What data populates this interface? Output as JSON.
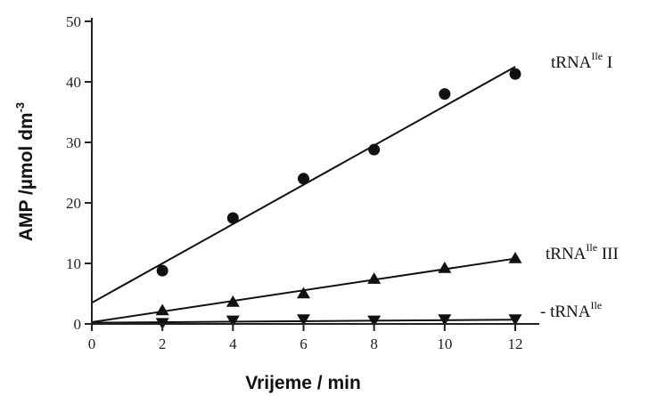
{
  "chart_data": {
    "type": "scatter",
    "xlabel": "Vrijeme / min",
    "ylabel": {
      "main": "AMP /µmol dm",
      "sup": "-3"
    },
    "xlim": [
      0,
      12
    ],
    "ylim": [
      0,
      50
    ],
    "xticks": [
      0,
      2,
      4,
      6,
      8,
      10,
      12
    ],
    "yticks": [
      0,
      10,
      20,
      30,
      40,
      50
    ],
    "grid": false,
    "x": [
      2,
      4,
      6,
      8,
      10,
      12
    ],
    "series": [
      {
        "label": {
          "pre": "tRNA",
          "sup": "Ile",
          "post": " I"
        },
        "marker": "circle",
        "y": [
          8.8,
          17.5,
          24.0,
          28.8,
          38.0,
          41.3
        ],
        "fit": {
          "x0": 0,
          "y0": 3.5,
          "x1": 12,
          "y1": 42.5
        }
      },
      {
        "label": {
          "pre": "tRNA",
          "sup": "Ile",
          "post": " III"
        },
        "marker": "triangle-up",
        "y": [
          2.2,
          3.6,
          5.0,
          7.4,
          9.2,
          10.8
        ],
        "fit": {
          "x0": 0,
          "y0": 0.3,
          "x1": 12,
          "y1": 10.8
        }
      },
      {
        "label": {
          "pre": "- tRNA",
          "sup": "Ile",
          "post": ""
        },
        "marker": "triangle-down",
        "y": [
          0.2,
          0.6,
          0.8,
          0.6,
          0.8,
          0.8
        ],
        "fit": {
          "x0": 0,
          "y0": 0.2,
          "x1": 12,
          "y1": 0.7
        }
      }
    ]
  }
}
